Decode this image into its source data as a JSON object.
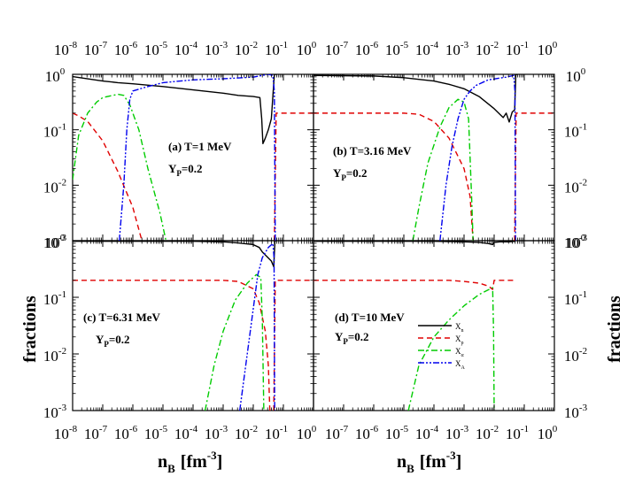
{
  "chart_data": {
    "type": "line",
    "layout": "2x2 shared axes",
    "x_scale": "log",
    "y_scale": "log",
    "xlim": [
      1e-08,
      1
    ],
    "ylim": [
      0.001,
      1
    ],
    "x_ticks": [
      {
        "base": "10",
        "exp": "-8"
      },
      {
        "base": "10",
        "exp": "-7"
      },
      {
        "base": "10",
        "exp": "-6"
      },
      {
        "base": "10",
        "exp": "-5"
      },
      {
        "base": "10",
        "exp": "-4"
      },
      {
        "base": "10",
        "exp": "-3"
      },
      {
        "base": "10",
        "exp": "-2"
      },
      {
        "base": "10",
        "exp": "-1"
      },
      {
        "base": "10",
        "exp": "0"
      }
    ],
    "y_ticks": [
      {
        "base": "10",
        "exp": "0"
      },
      {
        "base": "10",
        "exp": "-1"
      },
      {
        "base": "10",
        "exp": "-2"
      },
      {
        "base": "10",
        "exp": "-3"
      }
    ],
    "xlabel": {
      "main": "n",
      "sub": "B",
      "unit": "[fm",
      "unit_exp": "-3",
      "close": "]"
    },
    "ylabel": "fractions",
    "legend": [
      {
        "name": "X",
        "sub": "n",
        "color": "#000000",
        "dash": "solid"
      },
      {
        "name": "X",
        "sub": "p",
        "color": "#e00000",
        "dash": "dashed"
      },
      {
        "name": "X",
        "sub": "α",
        "color": "#00cc00",
        "dash": "dashdot"
      },
      {
        "name": "X",
        "sub": "A",
        "color": "#0000ee",
        "dash": "dashdotdot"
      }
    ],
    "panels": [
      {
        "label": "(a) T=1 MeV",
        "yp": {
          "main": "Y",
          "sub": "P",
          "rest": "=0.2"
        },
        "series": [
          {
            "name": "X_n",
            "points": [
              [
                -8,
                -0.04
              ],
              [
                -7.5,
                -0.08
              ],
              [
                -7,
                -0.12
              ],
              [
                -6.5,
                -0.15
              ],
              [
                -6,
                -0.17
              ],
              [
                -5,
                -0.22
              ],
              [
                -4,
                -0.28
              ],
              [
                -3,
                -0.34
              ],
              [
                -2.5,
                -0.38
              ],
              [
                -2,
                -0.4
              ],
              [
                -1.78,
                -0.42
              ],
              [
                -1.72,
                -0.8
              ],
              [
                -1.68,
                -1.25
              ],
              [
                -1.6,
                -1.15
              ],
              [
                -1.5,
                -1.0
              ],
              [
                -1.4,
                -0.8
              ],
              [
                -1.3,
                0.0
              ],
              [
                -1.22,
                0.0
              ]
            ]
          },
          {
            "name": "X_p",
            "points": [
              [
                -8,
                -0.7
              ],
              [
                -7.8,
                -0.75
              ],
              [
                -7.5,
                -0.85
              ],
              [
                -7,
                -1.2
              ],
              [
                -6.5,
                -1.75
              ],
              [
                -6,
                -2.4
              ],
              [
                -5.7,
                -3.0
              ]
            ]
          },
          {
            "name": "X_p",
            "points": [
              [
                -1.3,
                -3.0
              ],
              [
                -1.24,
                -0.7
              ],
              [
                0,
                -0.7
              ]
            ]
          },
          {
            "name": "X_alpha",
            "points": [
              [
                -8,
                -1.9
              ],
              [
                -7.8,
                -1.1
              ],
              [
                -7.5,
                -0.7
              ],
              [
                -7.2,
                -0.5
              ],
              [
                -7,
                -0.42
              ],
              [
                -6.5,
                -0.36
              ],
              [
                -6.3,
                -0.38
              ],
              [
                -6.1,
                -0.55
              ],
              [
                -5.8,
                -1.0
              ],
              [
                -5.5,
                -1.7
              ],
              [
                -5.1,
                -2.5
              ],
              [
                -4.9,
                -3.0
              ]
            ]
          },
          {
            "name": "X_A",
            "points": [
              [
                -6.45,
                -3.0
              ],
              [
                -6.3,
                -2.0
              ],
              [
                -6.2,
                -1.0
              ],
              [
                -6.1,
                -0.45
              ],
              [
                -6.0,
                -0.3
              ],
              [
                -5.5,
                -0.22
              ],
              [
                -5,
                -0.15
              ],
              [
                -4,
                -0.1
              ],
              [
                -3,
                -0.08
              ],
              [
                -2,
                -0.05
              ],
              [
                -1.7,
                -0.02
              ],
              [
                -1.5,
                0.0
              ],
              [
                -1.35,
                -0.02
              ],
              [
                -1.3,
                -0.3
              ],
              [
                -1.27,
                -3.0
              ]
            ]
          }
        ]
      },
      {
        "label": "(b) T=3.16 MeV",
        "yp": {
          "main": "Y",
          "sub": "P",
          "rest": "=0.2"
        },
        "series": [
          {
            "name": "X_n",
            "points": [
              [
                -8,
                -0.02
              ],
              [
                -6,
                -0.03
              ],
              [
                -5,
                -0.06
              ],
              [
                -4,
                -0.12
              ],
              [
                -3.5,
                -0.18
              ],
              [
                -3,
                -0.26
              ],
              [
                -2.5,
                -0.4
              ],
              [
                -2,
                -0.62
              ],
              [
                -1.7,
                -0.78
              ],
              [
                -1.6,
                -0.7
              ],
              [
                -1.5,
                -0.86
              ],
              [
                -1.4,
                -0.68
              ],
              [
                -1.32,
                -0.64
              ],
              [
                -1.28,
                0.0
              ],
              [
                -1.22,
                0.0
              ]
            ]
          },
          {
            "name": "X_p",
            "points": [
              [
                -8,
                -0.7
              ],
              [
                -5,
                -0.7
              ],
              [
                -4.5,
                -0.72
              ],
              [
                -4,
                -0.85
              ],
              [
                -3.5,
                -1.15
              ],
              [
                -3,
                -1.7
              ],
              [
                -2.8,
                -2.2
              ],
              [
                -2.7,
                -3.0
              ]
            ]
          },
          {
            "name": "X_p",
            "points": [
              [
                -1.32,
                -3.0
              ],
              [
                -1.27,
                -0.7
              ],
              [
                0,
                -0.7
              ]
            ]
          },
          {
            "name": "X_alpha",
            "points": [
              [
                -4.7,
                -3.0
              ],
              [
                -4.5,
                -2.4
              ],
              [
                -4.2,
                -1.6
              ],
              [
                -3.8,
                -0.95
              ],
              [
                -3.5,
                -0.6
              ],
              [
                -3.2,
                -0.45
              ],
              [
                -3.0,
                -0.5
              ],
              [
                -2.85,
                -0.8
              ],
              [
                -2.75,
                -2.2
              ],
              [
                -2.7,
                -3.0
              ]
            ]
          },
          {
            "name": "X_A",
            "points": [
              [
                -3.8,
                -3.0
              ],
              [
                -3.6,
                -2.0
              ],
              [
                -3.4,
                -1.3
              ],
              [
                -3.2,
                -0.8
              ],
              [
                -3.0,
                -0.45
              ],
              [
                -2.8,
                -0.3
              ],
              [
                -2.6,
                -0.2
              ],
              [
                -2.2,
                -0.1
              ],
              [
                -1.6,
                -0.05
              ],
              [
                -1.35,
                -0.02
              ],
              [
                -1.31,
                -0.3
              ],
              [
                -1.29,
                -3.0
              ]
            ]
          }
        ]
      },
      {
        "label": "(c) T=6.31 MeV",
        "yp": {
          "main": "Y",
          "sub": "P",
          "rest": "=0.2"
        },
        "series": [
          {
            "name": "X_n",
            "points": [
              [
                -8,
                -0.01
              ],
              [
                -4,
                -0.01
              ],
              [
                -3,
                -0.02
              ],
              [
                -2.5,
                -0.04
              ],
              [
                -2,
                -0.07
              ],
              [
                -1.8,
                -0.12
              ],
              [
                -1.7,
                -0.2
              ],
              [
                -1.55,
                -0.28
              ],
              [
                -1.4,
                -0.36
              ],
              [
                -1.32,
                -0.46
              ],
              [
                -1.28,
                0.0
              ],
              [
                -1.22,
                0.0
              ]
            ]
          },
          {
            "name": "X_p",
            "points": [
              [
                -8,
                -0.7
              ],
              [
                -3,
                -0.7
              ],
              [
                -2.5,
                -0.72
              ],
              [
                -2.0,
                -0.85
              ],
              [
                -1.8,
                -1.1
              ],
              [
                -1.6,
                -1.6
              ],
              [
                -1.5,
                -2.2
              ],
              [
                -1.45,
                -3.0
              ]
            ]
          },
          {
            "name": "X_p",
            "points": [
              [
                -1.32,
                -3.0
              ],
              [
                -1.27,
                -0.7
              ],
              [
                0,
                -0.7
              ]
            ]
          },
          {
            "name": "X_alpha",
            "points": [
              [
                -3.6,
                -3.0
              ],
              [
                -3.3,
                -2.2
              ],
              [
                -3.0,
                -1.6
              ],
              [
                -2.6,
                -1.05
              ],
              [
                -2.2,
                -0.75
              ],
              [
                -1.9,
                -0.6
              ],
              [
                -1.75,
                -0.65
              ],
              [
                -1.7,
                -1.4
              ],
              [
                -1.65,
                -3.0
              ]
            ]
          },
          {
            "name": "X_A",
            "points": [
              [
                -2.45,
                -3.0
              ],
              [
                -2.2,
                -2.0
              ],
              [
                -2.0,
                -1.2
              ],
              [
                -1.85,
                -0.6
              ],
              [
                -1.7,
                -0.3
              ],
              [
                -1.5,
                -0.12
              ],
              [
                -1.35,
                -0.05
              ],
              [
                -1.31,
                -0.3
              ],
              [
                -1.29,
                -3.0
              ]
            ]
          }
        ]
      },
      {
        "label": "(d) T=10 MeV",
        "yp": {
          "main": "Y",
          "sub": "P",
          "rest": "=0.2"
        },
        "series": [
          {
            "name": "X_n",
            "points": [
              [
                -8,
                -0.01
              ],
              [
                -4,
                -0.01
              ],
              [
                -3,
                -0.02
              ],
              [
                -2.5,
                -0.03
              ],
              [
                -2.2,
                -0.05
              ],
              [
                -2.05,
                -0.07
              ],
              [
                -2,
                -0.03
              ],
              [
                -1.8,
                -0.02
              ],
              [
                -1.5,
                -0.02
              ],
              [
                -1.3,
                -0.01
              ]
            ]
          },
          {
            "name": "X_p",
            "points": [
              [
                -8,
                -0.7
              ],
              [
                -3.5,
                -0.7
              ],
              [
                -3,
                -0.72
              ],
              [
                -2.5,
                -0.75
              ],
              [
                -2.2,
                -0.8
              ],
              [
                -2.05,
                -0.86
              ],
              [
                -2.0,
                -0.7
              ],
              [
                -1.3,
                -0.7
              ]
            ]
          },
          {
            "name": "X_alpha",
            "points": [
              [
                -4.85,
                -3.0
              ],
              [
                -4.5,
                -2.2
              ],
              [
                -4.0,
                -1.7
              ],
              [
                -3.5,
                -1.4
              ],
              [
                -3.0,
                -1.15
              ],
              [
                -2.5,
                -0.95
              ],
              [
                -2.2,
                -0.87
              ],
              [
                -2.05,
                -0.83
              ],
              [
                -2.02,
                -1.6
              ],
              [
                -2.0,
                -3.0
              ]
            ]
          }
        ]
      }
    ]
  }
}
